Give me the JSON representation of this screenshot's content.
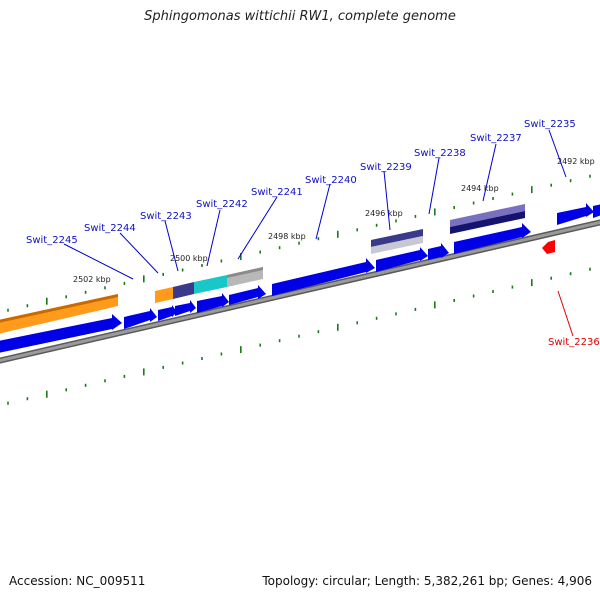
{
  "title": "Sphingomonas wittichii RW1, complete genome",
  "accession": "Accession: NC_009511",
  "summary": "Topology: circular; Length: 5,382,261 bp; Genes: 4,906",
  "colors": {
    "forward_gene": "#0000e6",
    "highlight_gene": "#ff0000",
    "label_forward": "#1010c8",
    "label_highlight": "#e00000",
    "backbone": "#8c8c8c",
    "tick": "#1a7a1a",
    "orange_feature": "#ff9a1a",
    "navy_feature": "#3a3a8a",
    "cyan_feature": "#18c8c8",
    "grey_feature": "#b4b4b4",
    "dark_navy_feature": "#141470"
  },
  "tick_labels": [
    "2502 kbp",
    "2500 kbp",
    "2498 kbp",
    "2496 kbp",
    "2494 kbp",
    "2492 kbp"
  ],
  "gene_labels": [
    "Swit_2245",
    "Swit_2244",
    "Swit_2243",
    "Swit_2242",
    "Swit_2241",
    "Swit_2240",
    "Swit_2239",
    "Swit_2238",
    "Swit_2237",
    "Swit_2235",
    "Swit_2236"
  ]
}
